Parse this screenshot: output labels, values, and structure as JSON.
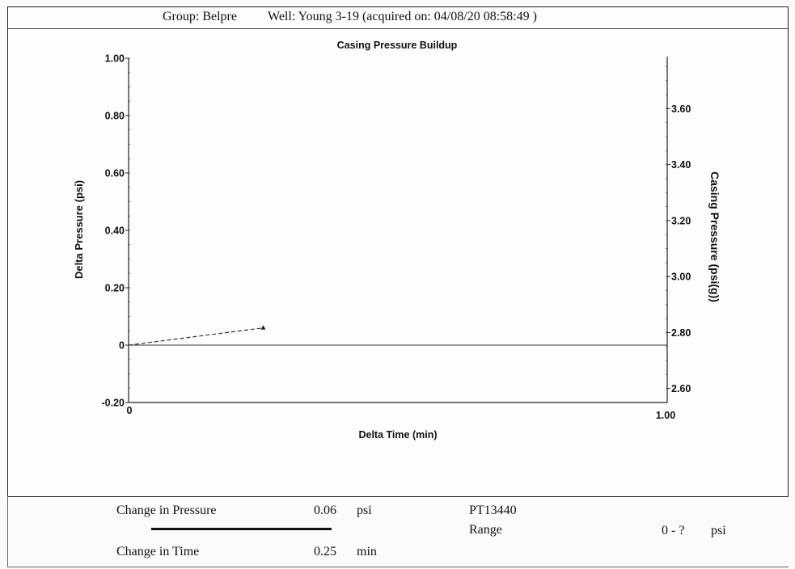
{
  "header": {
    "group_label": "Group: Belpre",
    "well_label": "Well: Young 3-19 (acquired on: 04/08/20 08:58:49 )"
  },
  "chart_data": {
    "type": "line",
    "title": "Casing Pressure Buildup",
    "xlabel": "Delta Time (min)",
    "ylabel": "Delta Pressure (psi)",
    "y2label": "Casing Pressure (psi(g))",
    "xlim": [
      0,
      1.0
    ],
    "ylim": [
      -0.2,
      1.0
    ],
    "y2lim": [
      2.55,
      3.78
    ],
    "x_ticks": [
      "0",
      "1.00"
    ],
    "y_ticks": [
      {
        "value": 1.0,
        "label": "1.00"
      },
      {
        "value": 0.8,
        "label": "0.80"
      },
      {
        "value": 0.6,
        "label": "0.60"
      },
      {
        "value": 0.4,
        "label": "0.40"
      },
      {
        "value": 0.2,
        "label": "0.20"
      },
      {
        "value": 0,
        "label": "0"
      },
      {
        "value": -0.2,
        "label": "-0.20"
      }
    ],
    "y2_ticks": [
      {
        "value": 3.6,
        "label": "3.60"
      },
      {
        "value": 3.4,
        "label": "3.40"
      },
      {
        "value": 3.2,
        "label": "3.20"
      },
      {
        "value": 3.0,
        "label": "3.00"
      },
      {
        "value": 2.8,
        "label": "2.80"
      },
      {
        "value": 2.6,
        "label": "2.60"
      }
    ],
    "series": [
      {
        "x": [
          0,
          0.25
        ],
        "y": [
          0,
          0.06
        ],
        "style": "dashed",
        "color": "#333333",
        "marker": "triangle"
      }
    ],
    "baseline": 0,
    "grid": false
  },
  "summary": {
    "pressure_label": "Change in Pressure",
    "pressure_value": "0.06",
    "pressure_unit": "psi",
    "time_label": "Change in Time",
    "time_value": "0.25",
    "time_unit": "min",
    "sensor_id": "PT13440",
    "range_label": "Range",
    "range_value": "0 - ?",
    "range_unit": "psi"
  }
}
